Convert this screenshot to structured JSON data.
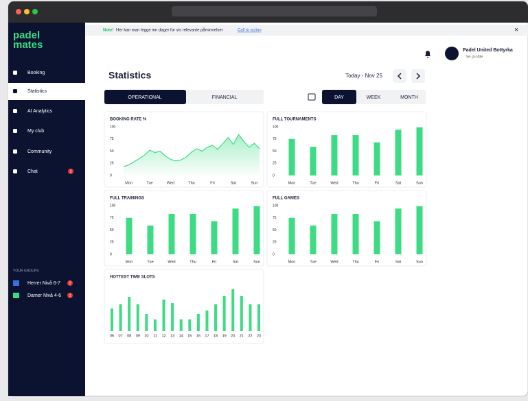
{
  "sidebar": {
    "logo": [
      "padel",
      "mates"
    ],
    "menu": [
      {
        "label": "Booking"
      },
      {
        "label": "Statistics"
      },
      {
        "label": "AI Analytics"
      },
      {
        "label": "My club"
      },
      {
        "label": "Community"
      },
      {
        "label": "Chat",
        "badge": 3
      }
    ],
    "groups_title": "YOUR GROUPS",
    "groups": [
      {
        "name": "Herrer Nivå 6-7",
        "badge": 2
      },
      {
        "name": "Damer Nivå 4-6",
        "badge": 1
      }
    ]
  },
  "notice": {
    "tag": "Note!",
    "text": "Her kan man legge inn dager for vis relevante påminnelser",
    "link": "Call to action"
  },
  "user": {
    "name": "Padel United Bottyrka",
    "subtitle": "Se profile"
  },
  "header": {
    "title": "Statistics",
    "date": "Today - Nov 25",
    "tabs": [
      "OPERATIONAL",
      "FINANCIAL"
    ],
    "periods": [
      "DAY",
      "WEEK",
      "MONTH"
    ]
  },
  "charts": [
    {
      "type": "line",
      "title": "BOOKING RATE %",
      "color": "#3ddc84",
      "x": [
        -0.25,
        0,
        0.25,
        0.5,
        0.75,
        1,
        1.25,
        1.5,
        1.75,
        2,
        2.25,
        2.5,
        2.75,
        3,
        3.25,
        3.5,
        3.75,
        4,
        4.25,
        4.5,
        4.75,
        5,
        5.25,
        5.5,
        5.75,
        6,
        6.25
      ],
      "values": [
        18,
        22,
        28,
        35,
        42,
        52,
        47,
        50,
        40,
        33,
        30,
        32,
        38,
        48,
        55,
        50,
        58,
        62,
        54,
        66,
        78,
        64,
        84,
        70,
        58,
        66,
        55
      ],
      "xlim": [
        -0.25,
        6.25
      ],
      "xticks": [
        {
          "value": 0,
          "label": "Mon"
        },
        {
          "value": 1,
          "label": "Tue"
        },
        {
          "value": 2,
          "label": "Wed"
        },
        {
          "value": 3,
          "label": "Thu"
        },
        {
          "value": 4,
          "label": "Fri"
        },
        {
          "value": 5,
          "label": "Sat"
        },
        {
          "value": 6,
          "label": "Sun"
        }
      ],
      "ylim": [
        0,
        100
      ],
      "yticks": [
        0,
        25,
        50,
        75,
        100
      ]
    },
    {
      "type": "bar",
      "title": "FULL TOURNAMENTS",
      "color": "#3ddc84",
      "categories": [
        "Mon",
        "Tue",
        "Wed",
        "Thu",
        "Fri",
        "Sat",
        "Sun"
      ],
      "values": [
        75,
        59,
        83,
        83,
        68,
        94,
        99
      ],
      "ylim": [
        0,
        100
      ],
      "yticks": [
        0,
        25,
        50,
        75,
        100
      ]
    },
    {
      "type": "bar",
      "title": "FULL TRAININGS",
      "color": "#3ddc84",
      "categories": [
        "Mon",
        "Tue",
        "Wed",
        "Thu",
        "Fri",
        "Sat",
        "Sun"
      ],
      "values": [
        75,
        59,
        83,
        83,
        68,
        94,
        99
      ],
      "ylim": [
        0,
        100
      ],
      "yticks": [
        0,
        25,
        50,
        75,
        100
      ]
    },
    {
      "type": "bar",
      "title": "FULL GAMES",
      "color": "#3ddc84",
      "categories": [
        "Mon",
        "Tue",
        "Wed",
        "Thu",
        "Fri",
        "Sat",
        "Sun"
      ],
      "values": [
        75,
        59,
        83,
        83,
        68,
        94,
        99
      ],
      "ylim": [
        0,
        100
      ],
      "yticks": [
        0,
        25,
        50,
        75,
        100
      ]
    },
    {
      "type": "slots",
      "title": "HOTTEST TIME SLOTS",
      "color": "#3ddc84",
      "categories": [
        "06",
        "07",
        "08",
        "09",
        "10",
        "11",
        "12",
        "13",
        "14",
        "15",
        "16",
        "17",
        "18",
        "19",
        "20",
        "21",
        "22",
        "23"
      ],
      "values": [
        33,
        39,
        50,
        39,
        25,
        17,
        46,
        41,
        17,
        17,
        25,
        30,
        39,
        51,
        61,
        51,
        39,
        39
      ]
    }
  ]
}
